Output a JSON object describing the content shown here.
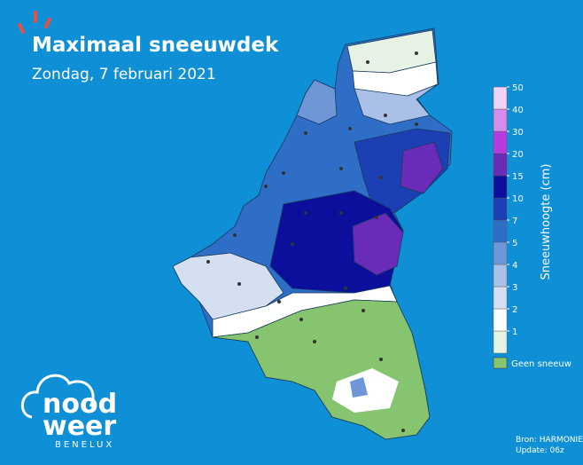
{
  "header": {
    "title": "Maximaal sneeuwdek",
    "subtitle": "Zondag, 7 februari 2021"
  },
  "colorbar": {
    "label": "Sneeuwhoogte (cm)",
    "levels": [
      1,
      2,
      3,
      4,
      5,
      7,
      10,
      15,
      20,
      30,
      40,
      50
    ],
    "colors": [
      "#e6f3e4",
      "#ffffff",
      "#d4dff2",
      "#a9c1e8",
      "#6f97d8",
      "#2f6ec7",
      "#1c3fb4",
      "#0c0f9c",
      "#6a2bb8",
      "#b63be0",
      "#d78cea",
      "#f0d2f4"
    ]
  },
  "legend": {
    "label": "Geen sneeuw",
    "color": "#86c46f"
  },
  "source": {
    "line1": "Bron: HARMONIE",
    "line2": "Update: 06z"
  },
  "logo": {
    "word1": "nood",
    "word2": "weer",
    "word3": "BENELUX"
  }
}
